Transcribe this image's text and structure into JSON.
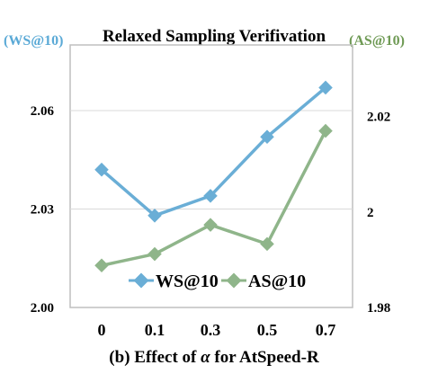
{
  "chart_data": {
    "type": "line",
    "title": "Relaxed Sampling Verifivation",
    "caption_prefix": "(b) Effect of ",
    "caption_symbol": "α",
    "caption_suffix": " for AtSpeed-R",
    "categories": [
      "0",
      "0.1",
      "0.3",
      "0.5",
      "0.7"
    ],
    "left_axis": {
      "label": "(WS@10)",
      "color": "#5aa9d6",
      "ylim": [
        2.0,
        2.08
      ],
      "ticks": [
        "2.00",
        "2.03",
        "2.06"
      ],
      "tick_values": [
        2.0,
        2.03,
        2.06
      ]
    },
    "right_axis": {
      "label": "(AS@10)",
      "color": "#6f9a55",
      "ylim": [
        1.98,
        2.035
      ],
      "ticks": [
        "1.98",
        "2",
        "2.02"
      ],
      "tick_values": [
        1.98,
        2.0,
        2.02
      ]
    },
    "series": [
      {
        "name": "WS@10",
        "axis": "left",
        "color": "#6aaed6",
        "values": [
          2.042,
          2.028,
          2.034,
          2.052,
          2.067
        ]
      },
      {
        "name": "AS@10",
        "axis": "right",
        "color": "#8fb58a",
        "values": [
          1.9888,
          1.9912,
          1.9973,
          1.9933,
          2.017
        ]
      }
    ],
    "grid": "horizontal",
    "legend_position": "bottom-center"
  }
}
